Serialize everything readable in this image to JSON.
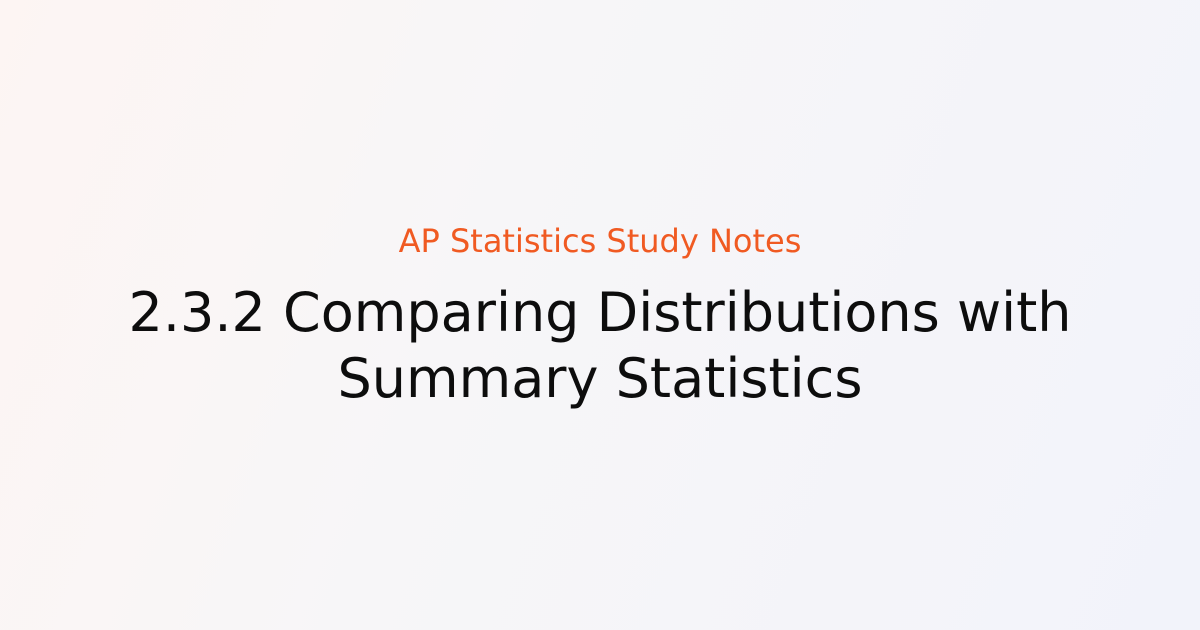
{
  "subtitle": "AP Statistics Study Notes",
  "title": "2.3.2 Comparing Distributions with Summary Statistics"
}
